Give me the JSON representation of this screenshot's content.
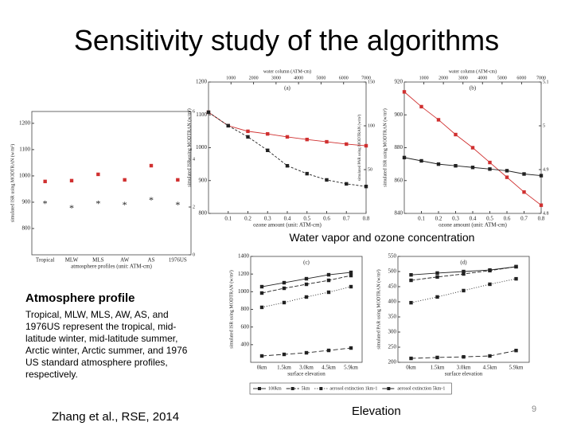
{
  "title": "Sensitivity study of the algorithms",
  "caption_top": "Water vapor and ozone concentration",
  "caption_left": "Atmosphere profile",
  "description": "Tropical, MLW, MLS, AW, AS, and 1976US represent the tropical, mid-latitude winter, mid-latitude summer, Arctic winter, Arctic summer, and 1976 US standard atmosphere profiles, respectively.",
  "citation": "Zhang et al., RSE, 2014",
  "caption_bottom": "Elevation",
  "page_number": "9",
  "chart_data": [
    {
      "type": "scatter",
      "xlabel": "atmosphere profiles (unit: ATM-cm)",
      "ylabel": "simulated ISR using MODTRAN (w/m²)",
      "categories": [
        "Tropical",
        "MLW",
        "MLS",
        "AW",
        "AS",
        "1976US"
      ],
      "ylim": [
        700,
        1245
      ],
      "yticks": [
        800,
        900,
        1000,
        1100,
        1200
      ],
      "y2lim": [
        0,
        6
      ],
      "y2ticks": [
        0,
        2,
        4,
        6
      ],
      "series": [
        {
          "color": "#d03030",
          "marker": "square",
          "values": [
            979,
            982,
            1006,
            985,
            1039,
            985
          ]
        },
        {
          "color": "#333333",
          "marker": "star",
          "axis": "y2",
          "values": [
            2.17,
            2.0,
            2.17,
            2.13,
            2.33,
            2.13
          ]
        }
      ]
    },
    {
      "type": "line",
      "panel": "(a)",
      "xlabel": "ozone amount (unit: ATM-cm)",
      "x2label": "water column (ATM-cm)",
      "ylabel": "simulated ISR using MODTRAN (w/m²)",
      "y2label": "simulated PAR using MODTRAN (w/m²)",
      "x": [
        0,
        0.1,
        0.2,
        0.3,
        0.4,
        0.5,
        0.6,
        0.7,
        0.8
      ],
      "xlim": [
        0,
        0.8
      ],
      "xticks": [
        0.1,
        0.2,
        0.3,
        0.4,
        0.5,
        0.6,
        0.7,
        0.8
      ],
      "x2lim": [
        0,
        7000
      ],
      "x2ticks": [
        1000,
        2000,
        3000,
        4000,
        5000,
        6000,
        7000
      ],
      "ylim": [
        800,
        1200
      ],
      "yticks": [
        800,
        900,
        1000,
        1100,
        1200
      ],
      "y2lim": [
        0,
        150
      ],
      "y2ticks": [
        50,
        100,
        150
      ],
      "series": [
        {
          "color": "#d03030",
          "marker": "square",
          "values": [
            1108,
            1067,
            1050,
            1042,
            1033,
            1025,
            1018,
            1011,
            1006
          ]
        },
        {
          "color": "#222222",
          "marker": "square",
          "dash": "3 2",
          "values": [
            1108,
            1067,
            1033,
            992,
            945,
            921,
            902,
            890,
            882
          ]
        }
      ]
    },
    {
      "type": "line",
      "panel": "(b)",
      "xlabel": "ozone amount (unit: ATM-cm)",
      "x2label": "water column (ATM-cm)",
      "ylabel": "simulated ISR using MODTRAN (w/m²)",
      "x": [
        0,
        0.1,
        0.2,
        0.3,
        0.4,
        0.5,
        0.6,
        0.7,
        0.8
      ],
      "xlim": [
        0,
        0.8
      ],
      "xticks": [
        0.1,
        0.2,
        0.3,
        0.4,
        0.5,
        0.6,
        0.7,
        0.8
      ],
      "x2lim": [
        0,
        7000
      ],
      "x2ticks": [
        1000,
        2000,
        3000,
        4000,
        5000,
        6000,
        7000
      ],
      "ylim": [
        840,
        920
      ],
      "yticks": [
        840,
        860,
        880,
        900,
        920
      ],
      "y2lim": [
        4.8,
        5.1
      ],
      "y2ticks": [
        4.8,
        4.9,
        5,
        5.1
      ],
      "series": [
        {
          "color": "#d03030",
          "marker": "square",
          "values": [
            914,
            905,
            897,
            888,
            880,
            871,
            862,
            853,
            845
          ]
        },
        {
          "color": "#222222",
          "marker": "square",
          "values": [
            874,
            872,
            870,
            869,
            868,
            867,
            866,
            864,
            863
          ]
        }
      ]
    },
    {
      "type": "line",
      "panel": "(c)",
      "xlabel": "surface elevation",
      "ylabel": "simulated ISR using MODTRAN (w/m²)",
      "categories": [
        "0km",
        "1.5km",
        "3.0km",
        "4.5km",
        "5.9km"
      ],
      "ylim": [
        200,
        1400
      ],
      "yticks": [
        400,
        600,
        800,
        1000,
        1200,
        1400
      ],
      "legend": "bottom",
      "series": [
        {
          "name": "100km",
          "color": "#222222",
          "marker": "square",
          "values": [
            1057,
            1102,
            1147,
            1192,
            1219
          ]
        },
        {
          "name": "5km",
          "color": "#222222",
          "marker": "square",
          "dash": "5 2",
          "values": [
            985,
            1039,
            1084,
            1129,
            1183
          ]
        },
        {
          "name": "aerosol extinction 1km-1",
          "color": "#222222",
          "marker": "square",
          "dash": "1 2",
          "values": [
            823,
            877,
            940,
            994,
            1057
          ]
        },
        {
          "name": "aerosol extinction 5km-1",
          "color": "#222222",
          "marker": "square",
          "dash": "6 3",
          "values": [
            272,
            290,
            308,
            335,
            362
          ]
        }
      ]
    },
    {
      "type": "line",
      "panel": "(d)",
      "xlabel": "surface elevation",
      "ylabel": "simulated PAR using MODTRAN (w/m²)",
      "categories": [
        "0km",
        "1.5km",
        "3.0km",
        "4.5km",
        "5.9km"
      ],
      "ylim": [
        200,
        550
      ],
      "yticks": [
        200,
        250,
        300,
        350,
        400,
        450,
        500,
        550
      ],
      "series": [
        {
          "color": "#222222",
          "marker": "square",
          "values": [
            489,
            495,
            500,
            505,
            516
          ]
        },
        {
          "color": "#222222",
          "marker": "square",
          "dash": "5 2",
          "values": [
            471,
            482,
            492,
            503,
            516
          ]
        },
        {
          "color": "#222222",
          "marker": "square",
          "dash": "1 2",
          "values": [
            397,
            416,
            437,
            458,
            476
          ]
        },
        {
          "color": "#222222",
          "marker": "square",
          "dash": "6 3",
          "values": [
            213,
            216,
            218,
            221,
            239
          ]
        }
      ]
    }
  ]
}
